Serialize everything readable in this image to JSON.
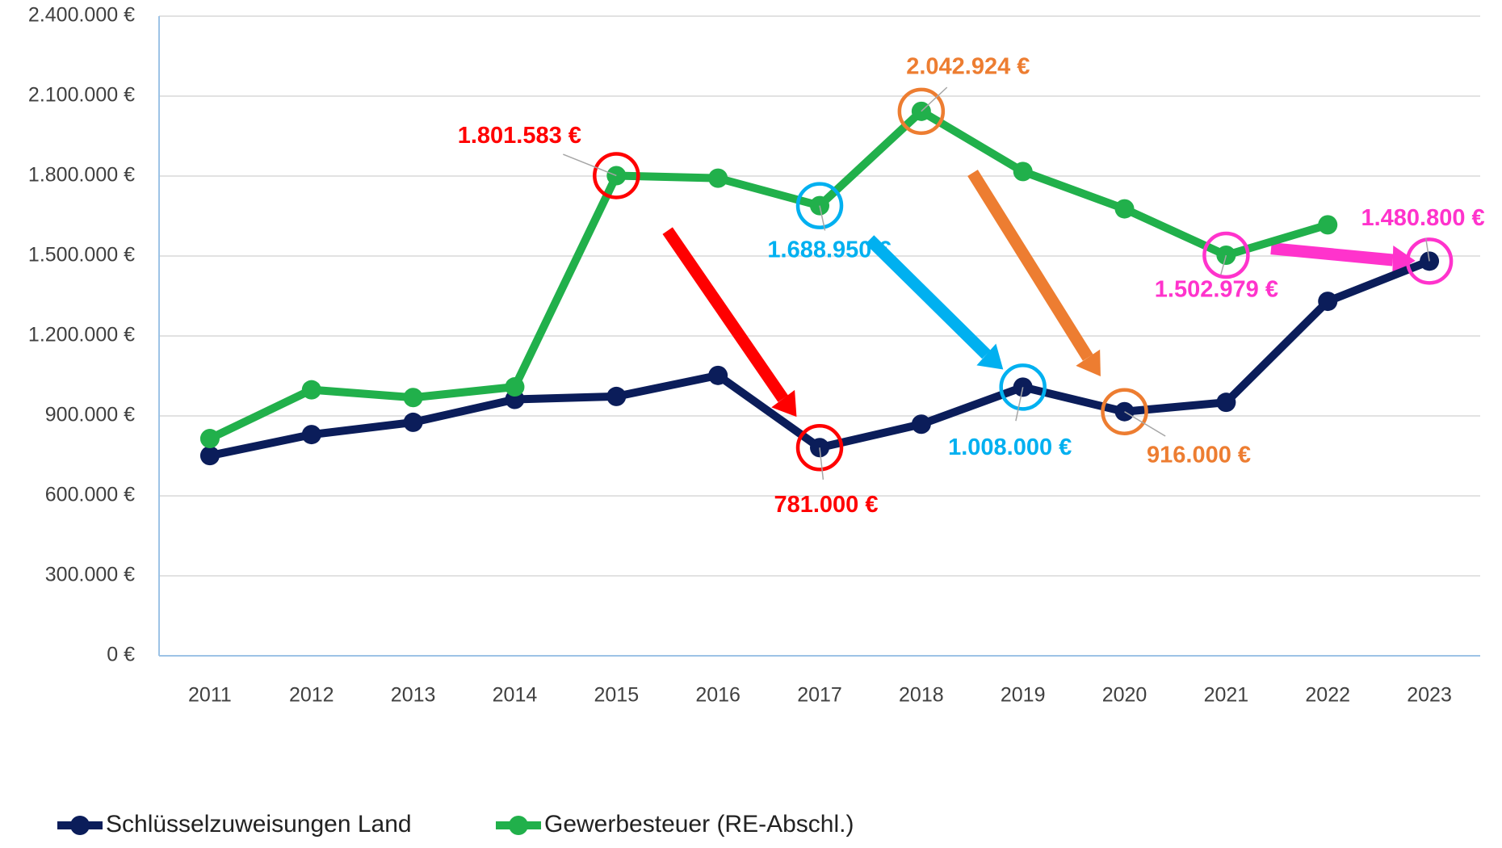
{
  "chart_data": {
    "type": "line",
    "categories": [
      "2011",
      "2012",
      "2013",
      "2014",
      "2015",
      "2016",
      "2017",
      "2018",
      "2019",
      "2020",
      "2021",
      "2022",
      "2023"
    ],
    "series": [
      {
        "name": "Schlüsselzuweisungen Land",
        "color": "#0b1d5a",
        "values": [
          751000,
          830000,
          876000,
          962000,
          973000,
          1052000,
          781000,
          869000,
          1008000,
          916000,
          951000,
          1330000,
          1480800
        ],
        "value_labels": [
          null,
          null,
          null,
          null,
          null,
          null,
          "781.000 €",
          null,
          "1.008.000 €",
          "916.000 €",
          null,
          null,
          "1.480.800 €"
        ],
        "value_label_colors": [
          null,
          null,
          null,
          null,
          null,
          null,
          "#ff0000",
          null,
          "#00b0f0",
          "#ed7d31",
          null,
          null,
          "#ff33cc"
        ]
      },
      {
        "name": "Gewerbesteuer (RE-Abschl.)",
        "color": "#21b04b",
        "values": [
          815000,
          998000,
          969000,
          1009000,
          1801583,
          1792000,
          1688950,
          2042924,
          1817000,
          1677000,
          1502979,
          1617000,
          null
        ],
        "value_labels": [
          null,
          null,
          null,
          null,
          "1.801.583 €",
          null,
          "1.688.950 €",
          "2.042.924 €",
          null,
          null,
          "1.502.979 €",
          null,
          null
        ],
        "value_label_colors": [
          null,
          null,
          null,
          null,
          "#ff0000",
          null,
          "#00b0f0",
          "#ed7d31",
          null,
          null,
          "#ff33cc",
          null,
          null
        ]
      }
    ],
    "ylim": [
      0,
      2400000
    ],
    "yticks": [
      {
        "value": 0,
        "label": "0 €"
      },
      {
        "value": 300000,
        "label": "300.000 €"
      },
      {
        "value": 600000,
        "label": "600.000 €"
      },
      {
        "value": 900000,
        "label": "900.000 €"
      },
      {
        "value": 1200000,
        "label": "1.200.000 €"
      },
      {
        "value": 1500000,
        "label": "1.500.000 €"
      },
      {
        "value": 1800000,
        "label": "1.800.000 €"
      },
      {
        "value": 2100000,
        "label": "2.100.000 €"
      },
      {
        "value": 2400000,
        "label": "2.400.000 €"
      }
    ],
    "grid": true,
    "legend": "bottom-left"
  }
}
